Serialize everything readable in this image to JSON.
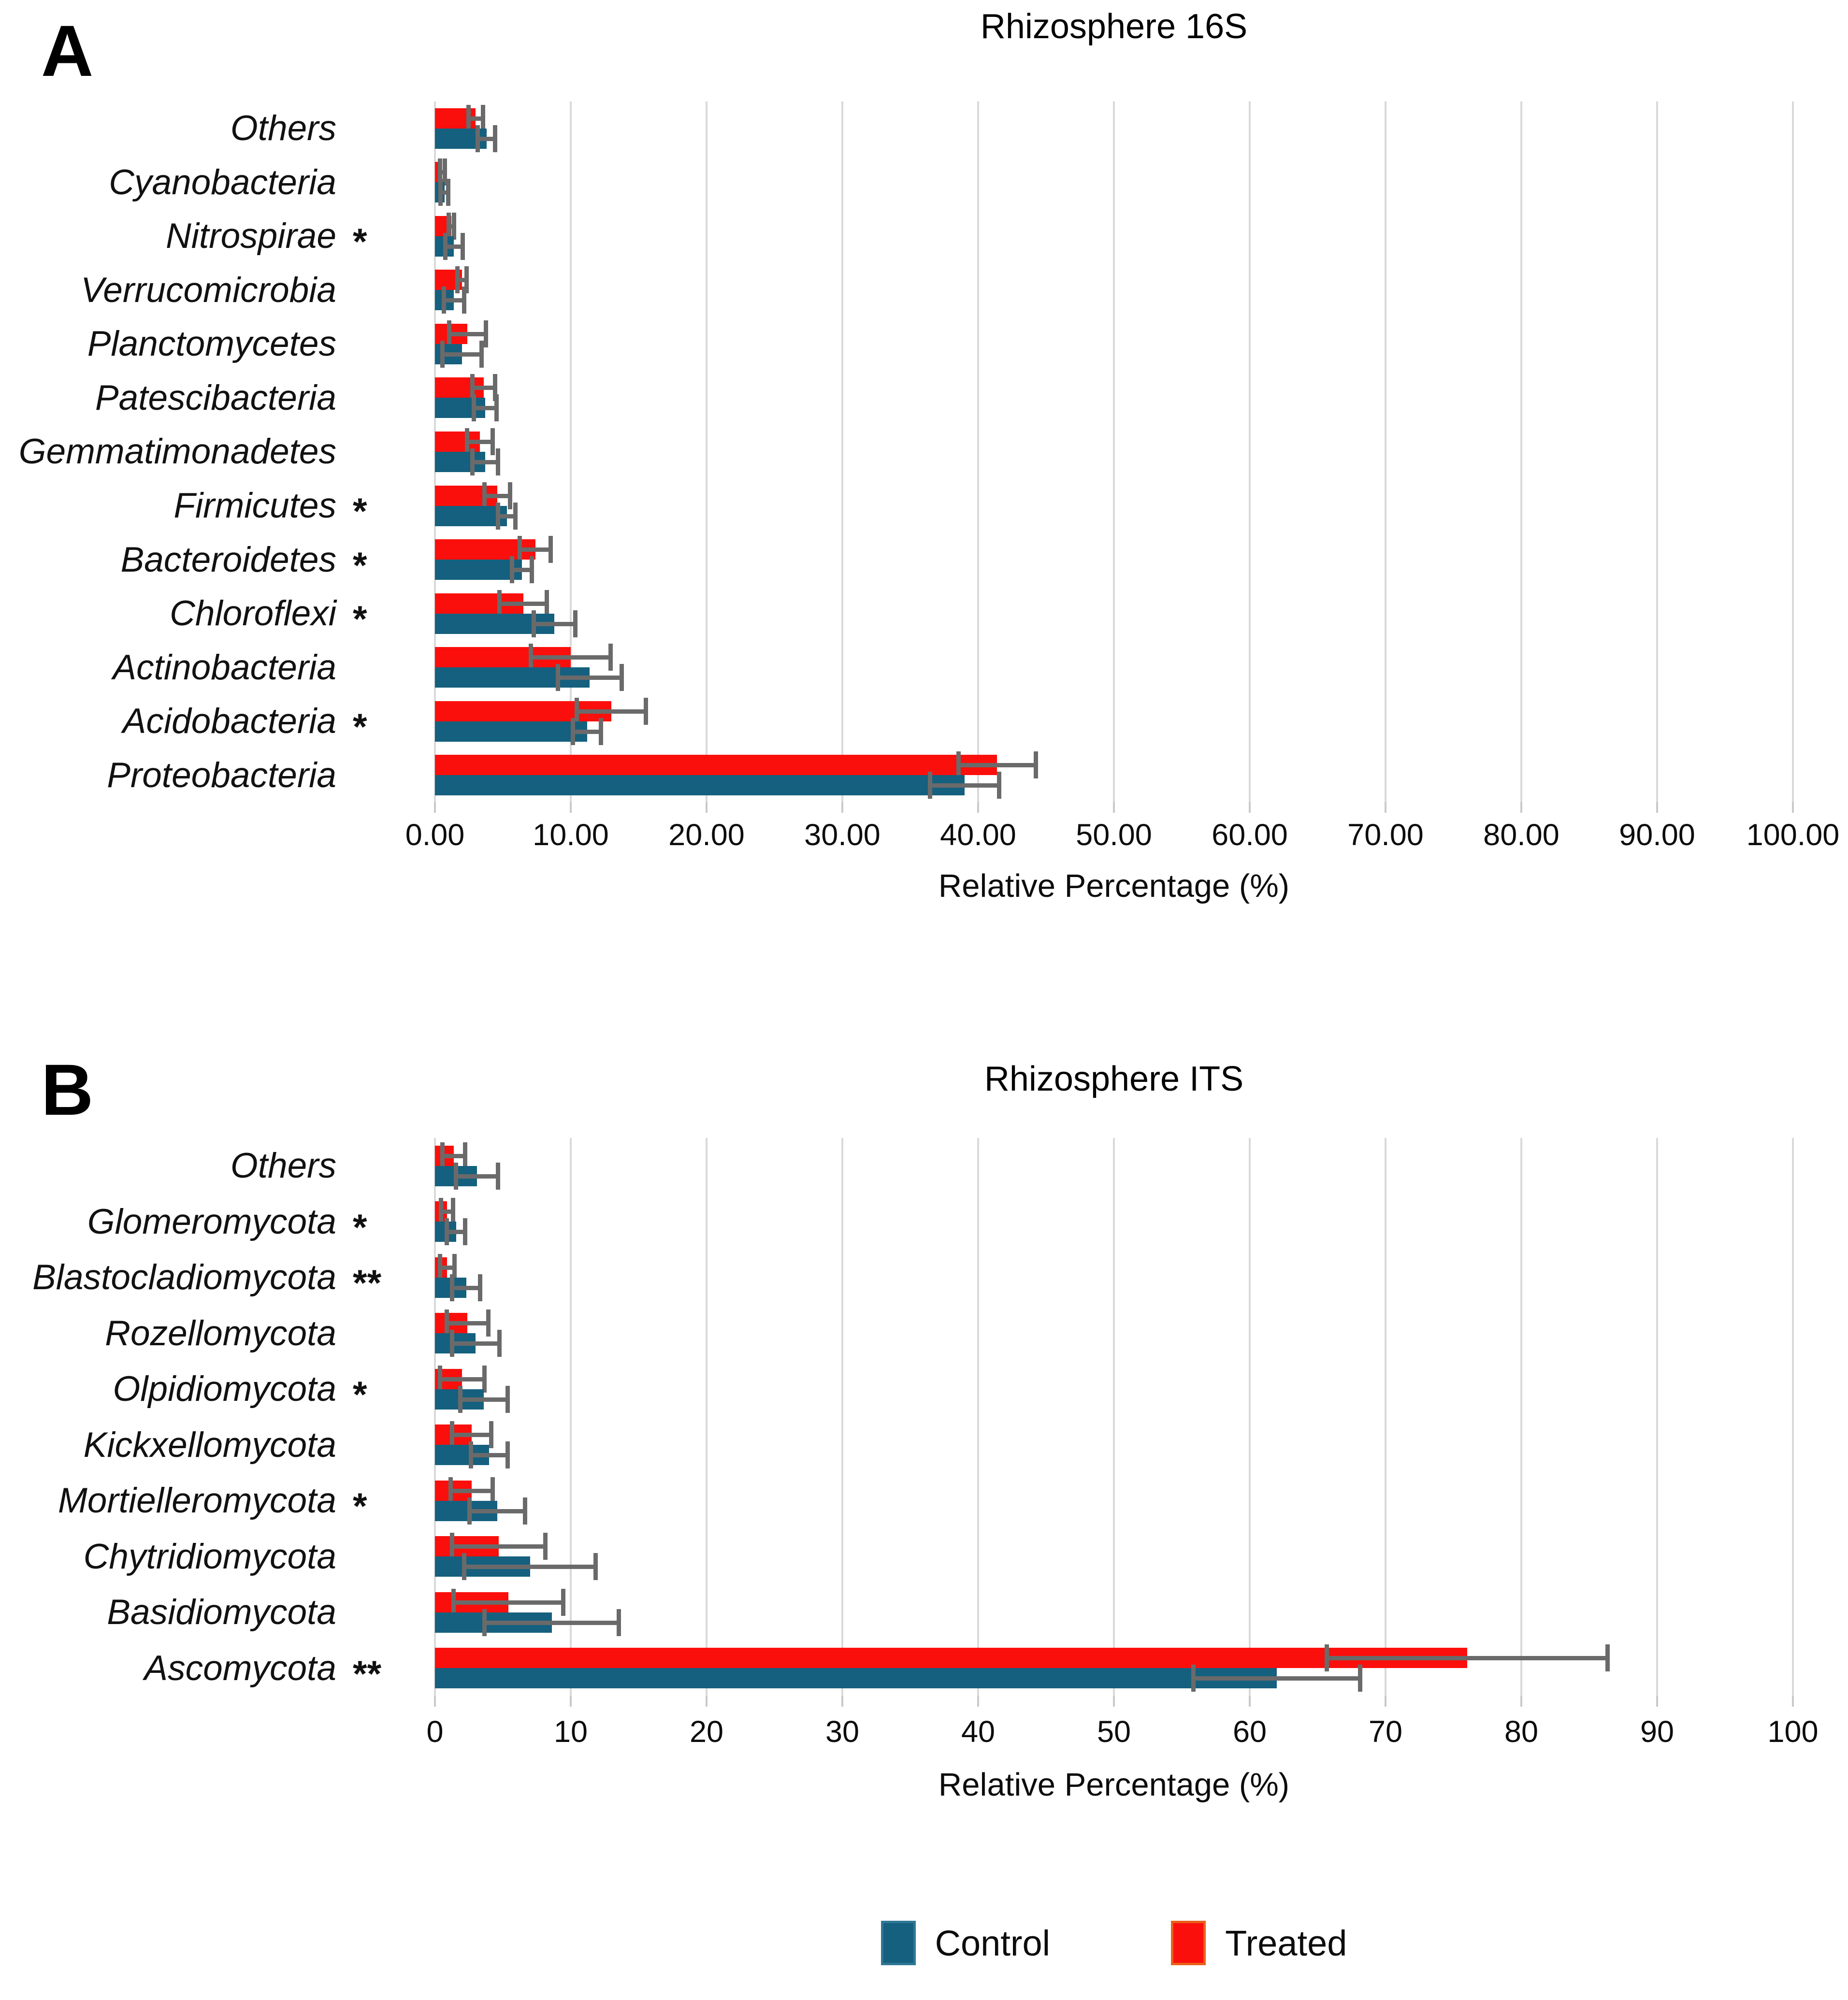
{
  "figure": {
    "legend": {
      "items": [
        {
          "label": "Control",
          "color": "#15607e",
          "border": "#2e7795"
        },
        {
          "label": "Treated",
          "color": "#fb0f0c",
          "border": "#e8601c"
        }
      ]
    },
    "colors": {
      "control": "#15607e",
      "treated": "#fb0f0c",
      "error_bar": "#6a6a6a",
      "gridline": "#d9d9d9",
      "background": "#ffffff",
      "text": "#000000"
    }
  },
  "chart_data": [
    {
      "type": "bar",
      "orientation": "horizontal",
      "panel_letter": "A",
      "title": "Rhizosphere 16S",
      "xlabel": "Relative Percentage (%)",
      "xlim": [
        0,
        100
      ],
      "grid": true,
      "xticks": [
        "0.00",
        "10.00",
        "20.00",
        "30.00",
        "40.00",
        "50.00",
        "60.00",
        "70.00",
        "80.00",
        "90.00",
        "100.00"
      ],
      "categories": [
        "Others",
        "Cyanobacteria",
        "Nitrospirae",
        "Verrucomicrobia",
        "Planctomycetes",
        "Patescibacteria",
        "Gemmatimonadetes",
        "Firmicutes",
        "Bacteroidetes",
        "Chloroflexi",
        "Actinobacteria",
        "Acidobacteria",
        "Proteobacteria"
      ],
      "significance": [
        "",
        "",
        "*",
        "",
        "",
        "",
        "",
        "*",
        "*",
        "*",
        "",
        "*",
        ""
      ],
      "series": [
        {
          "name": "Treated",
          "color": "#fb0f0c",
          "values": [
            3.0,
            0.55,
            1.2,
            2.0,
            2.4,
            3.6,
            3.3,
            4.6,
            7.4,
            6.5,
            10.0,
            13.0,
            41.4
          ],
          "errors": [
            0.7,
            0.35,
            0.35,
            0.5,
            1.5,
            1.0,
            1.1,
            1.1,
            1.3,
            1.9,
            3.1,
            2.7,
            3.0
          ]
        },
        {
          "name": "Control",
          "color": "#15607e",
          "values": [
            3.8,
            0.7,
            1.4,
            1.4,
            2.0,
            3.7,
            3.7,
            5.3,
            6.4,
            8.8,
            11.4,
            11.2,
            39.0
          ],
          "errors": [
            0.8,
            0.45,
            0.8,
            0.9,
            1.6,
            1.0,
            1.1,
            0.8,
            0.9,
            1.7,
            2.5,
            1.2,
            2.7
          ]
        }
      ]
    },
    {
      "type": "bar",
      "orientation": "horizontal",
      "panel_letter": "B",
      "title": "Rhizosphere ITS",
      "xlabel": "Relative Percentage (%)",
      "xlim": [
        0,
        100
      ],
      "grid": true,
      "xticks": [
        "0",
        "10",
        "20",
        "30",
        "40",
        "50",
        "60",
        "70",
        "80",
        "90",
        "100"
      ],
      "categories": [
        "Others",
        "Glomeromycota",
        "Blastocladiomycota",
        "Rozellomycota",
        "Olpidiomycota",
        "Kickxellomycota",
        "Mortielleromycota",
        "Chytridiomycota",
        "Basidiomycota",
        "Ascomycota"
      ],
      "significance": [
        "",
        "*",
        "**",
        "",
        "*",
        "",
        "*",
        "",
        "",
        "**"
      ],
      "series": [
        {
          "name": "Treated",
          "color": "#fb0f0c",
          "values": [
            1.4,
            0.9,
            0.9,
            2.4,
            2.0,
            2.7,
            2.7,
            4.7,
            5.4,
            76.0
          ],
          "errors": [
            1.0,
            0.6,
            0.7,
            1.7,
            1.8,
            1.6,
            1.7,
            3.6,
            4.2,
            10.5
          ]
        },
        {
          "name": "Control",
          "color": "#15607e",
          "values": [
            3.1,
            1.55,
            2.3,
            3.0,
            3.6,
            4.0,
            4.6,
            7.0,
            8.6,
            62.0
          ],
          "errors": [
            1.7,
            0.85,
            1.2,
            1.9,
            1.9,
            1.5,
            2.2,
            5.0,
            5.1,
            6.3
          ]
        }
      ]
    }
  ]
}
